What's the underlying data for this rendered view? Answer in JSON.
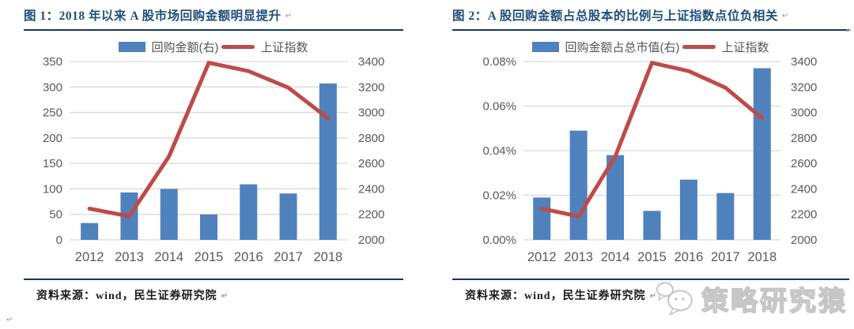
{
  "colors": {
    "bar": "#4F81BD",
    "line": "#BE4B48",
    "title_text": "#1F4E79",
    "rule": "#17375E",
    "axis_text": "#595959",
    "gridline": "#D9D9D9",
    "watermark_gray": "#c6c6c6"
  },
  "artifacts": {
    "return_mark": "↵"
  },
  "panels": [
    {
      "title": "图 1：2018 年以来 A 股市场回购金额明显提升",
      "source_label": "资料来源：wind，民生证券研究院"
    },
    {
      "title": "图 2：A 股回购金额占总股本的比例与上证指数点位负相关",
      "source_label": "资料来源：wind，民生证券研究院"
    }
  ],
  "watermark": {
    "text": "策略研究猿",
    "icon": "chat-bubbles"
  },
  "chart_data": [
    {
      "type": "bar",
      "title": "图 1：2018 年以来 A 股市场回购金额明显提升",
      "categories": [
        "2012",
        "2013",
        "2014",
        "2015",
        "2016",
        "2017",
        "2018"
      ],
      "series": [
        {
          "name": "回购金额(右)",
          "type": "bar",
          "axis": "left",
          "values": [
            33,
            93,
            100,
            50,
            109,
            91,
            307
          ]
        },
        {
          "name": "上证指数",
          "type": "line",
          "axis": "right",
          "values": [
            2245,
            2185,
            2655,
            3390,
            3325,
            3195,
            2955
          ]
        }
      ],
      "left_axis": {
        "min": 0,
        "max": 350,
        "tick_labels": [
          "0",
          "50",
          "100",
          "150",
          "200",
          "250",
          "300",
          "350"
        ]
      },
      "right_axis": {
        "min": 2000,
        "max": 3400,
        "tick_labels": [
          "2000",
          "2200",
          "2400",
          "2600",
          "2800",
          "3000",
          "3200",
          "3400"
        ]
      },
      "grid": "horizontal-left-ticks",
      "legend_position": "top"
    },
    {
      "type": "bar",
      "title": "图 2：A 股回购金额占总股本的比例与上证指数点位负相关",
      "categories": [
        "2012",
        "2013",
        "2014",
        "2015",
        "2016",
        "2017",
        "2018"
      ],
      "series": [
        {
          "name": "回购金额占总市值(右)",
          "type": "bar",
          "axis": "left",
          "values": [
            0.019,
            0.049,
            0.038,
            0.013,
            0.027,
            0.021,
            0.077
          ]
        },
        {
          "name": "上证指数",
          "type": "line",
          "axis": "right",
          "values": [
            2245,
            2185,
            2655,
            3390,
            3325,
            3195,
            2955
          ]
        }
      ],
      "left_axis": {
        "min": 0,
        "max": 0.08,
        "unit": "%",
        "tick_labels": [
          "0.00%",
          "0.02%",
          "0.04%",
          "0.06%",
          "0.08%"
        ]
      },
      "right_axis": {
        "min": 2000,
        "max": 3400,
        "tick_labels": [
          "2000",
          "2200",
          "2400",
          "2600",
          "2800",
          "3000",
          "3200",
          "3400"
        ]
      },
      "grid": "horizontal-left-ticks",
      "legend_position": "top"
    }
  ]
}
